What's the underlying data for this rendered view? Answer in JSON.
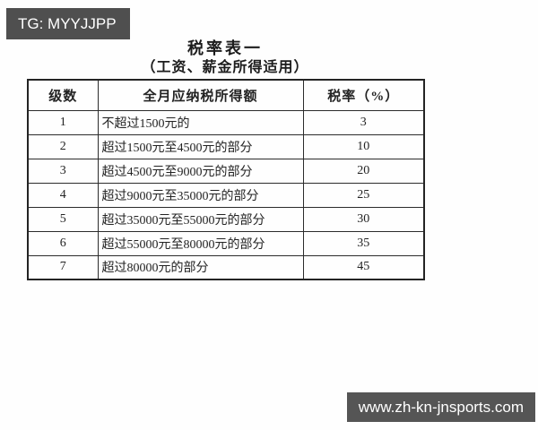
{
  "watermarks": {
    "telegram": "TG: MYYJJPP",
    "website": "www.zh-kn-jnsports.com"
  },
  "title": "税率表一",
  "subtitle": "（工资、薪金所得适用）",
  "table": {
    "headers": [
      "级数",
      "全月应纳税所得额",
      "税率（%）"
    ],
    "rows": [
      [
        "1",
        "不超过1500元的",
        "3"
      ],
      [
        "2",
        "超过1500元至4500元的部分",
        "10"
      ],
      [
        "3",
        "超过4500元至9000元的部分",
        "20"
      ],
      [
        "4",
        "超过9000元至35000元的部分",
        "25"
      ],
      [
        "5",
        "超过35000元至55000元的部分",
        "30"
      ],
      [
        "6",
        "超过55000元至80000元的部分",
        "35"
      ],
      [
        "7",
        "超过80000元的部分",
        "45"
      ]
    ]
  },
  "colors": {
    "background": "#fefefe",
    "badge_bg_top": "#4f4f4f",
    "badge_bg_bottom": "#555555",
    "badge_text": "#ffffff",
    "table_border": "#2b2b2b",
    "text": "#232323"
  }
}
